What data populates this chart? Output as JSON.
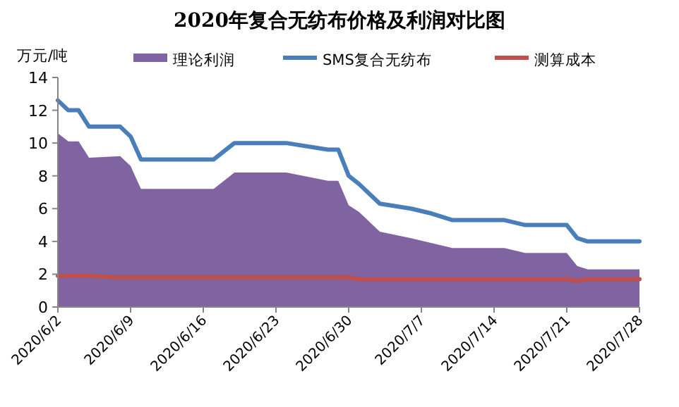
{
  "chart_data": {
    "type": "line",
    "title": "2020年复合无纺布价格及利润对比图",
    "ylabel": "万元/吨",
    "x": [
      "2020-06-02",
      "2020-06-03",
      "2020-06-04",
      "2020-06-05",
      "2020-06-08",
      "2020-06-09",
      "2020-06-10",
      "2020-06-17",
      "2020-06-19",
      "2020-06-24",
      "2020-06-28",
      "2020-06-29",
      "2020-06-30",
      "2020-07-01",
      "2020-07-03",
      "2020-07-06",
      "2020-07-08",
      "2020-07-10",
      "2020-07-15",
      "2020-07-17",
      "2020-07-21",
      "2020-07-22",
      "2020-07-23",
      "2020-07-28"
    ],
    "series": [
      {
        "name": "理论利润",
        "type": "area",
        "color": "#8064a2",
        "values": [
          10.6,
          10.1,
          10.1,
          9.1,
          9.2,
          8.6,
          7.2,
          7.2,
          8.2,
          8.2,
          7.7,
          7.7,
          6.2,
          5.8,
          4.6,
          4.2,
          3.9,
          3.6,
          3.6,
          3.3,
          3.3,
          2.5,
          2.3,
          2.3
        ]
      },
      {
        "name": "SMS复合无纺布",
        "type": "line",
        "color": "#4a7ebb",
        "values": [
          12.6,
          12.0,
          12.0,
          11.0,
          11.0,
          10.4,
          9.0,
          9.0,
          10.0,
          10.0,
          9.6,
          9.6,
          8.0,
          7.5,
          6.3,
          6.0,
          5.7,
          5.3,
          5.3,
          5.0,
          5.0,
          4.2,
          4.0,
          4.0
        ]
      },
      {
        "name": "测算成本",
        "type": "line",
        "color": "#c0504d",
        "values": [
          1.9,
          1.9,
          1.9,
          1.9,
          1.8,
          1.8,
          1.8,
          1.8,
          1.8,
          1.8,
          1.8,
          1.8,
          1.8,
          1.7,
          1.7,
          1.7,
          1.7,
          1.7,
          1.7,
          1.7,
          1.7,
          1.6,
          1.7,
          1.7
        ]
      }
    ],
    "xlim": [
      "2020-06-02",
      "2020-07-28"
    ],
    "xticks": [
      {
        "value": "2020-06-02",
        "label": "2020/6/2"
      },
      {
        "value": "2020-06-09",
        "label": "2020/6/9"
      },
      {
        "value": "2020-06-16",
        "label": "2020/6/16"
      },
      {
        "value": "2020-06-23",
        "label": "2020/6/23"
      },
      {
        "value": "2020-06-30",
        "label": "2020/6/30"
      },
      {
        "value": "2020-07-07",
        "label": "2020/7/7"
      },
      {
        "value": "2020-07-14",
        "label": "2020/7/14"
      },
      {
        "value": "2020-07-21",
        "label": "2020/7/21"
      },
      {
        "value": "2020-07-28",
        "label": "2020/7/28"
      }
    ],
    "ylim": [
      0,
      14
    ],
    "yticks": [
      0,
      2,
      4,
      6,
      8,
      10,
      12,
      14
    ],
    "legend": "top"
  }
}
